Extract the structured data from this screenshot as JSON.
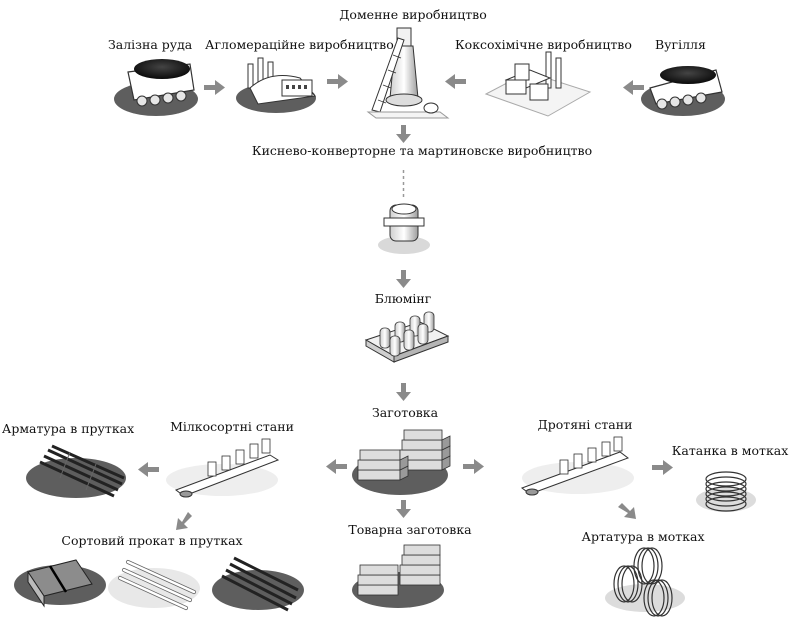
{
  "labels": {
    "iron_ore": "Залізна руда",
    "sinter": "Агломераційне виробництво",
    "blast_furnace": "Доменне виробництво",
    "coke": "Коксохімічне виробництво",
    "coal": "Вугілля",
    "oxygen_open_hearth": "Кисневo-конверторне та мартиновске виробництво",
    "blooming": "Блюмінг",
    "billet": "Заготовка",
    "small_section_mills": "Мілкосортні стани",
    "wire_mills": "Дротяні стани",
    "rebar_bars": "Арматура в прутках",
    "section_bars": "Сортовий прокат в прутках",
    "commercial_billet": "Товарна заготовка",
    "wire_rod_coils": "Катанка в мотках",
    "rebar_coils": "Артатура в мотках"
  },
  "colors": {
    "arrow": "#8a8a8a",
    "shadow": "#5e5e5e",
    "shadow_light": "#dcdcdc",
    "ink": "#222222"
  }
}
